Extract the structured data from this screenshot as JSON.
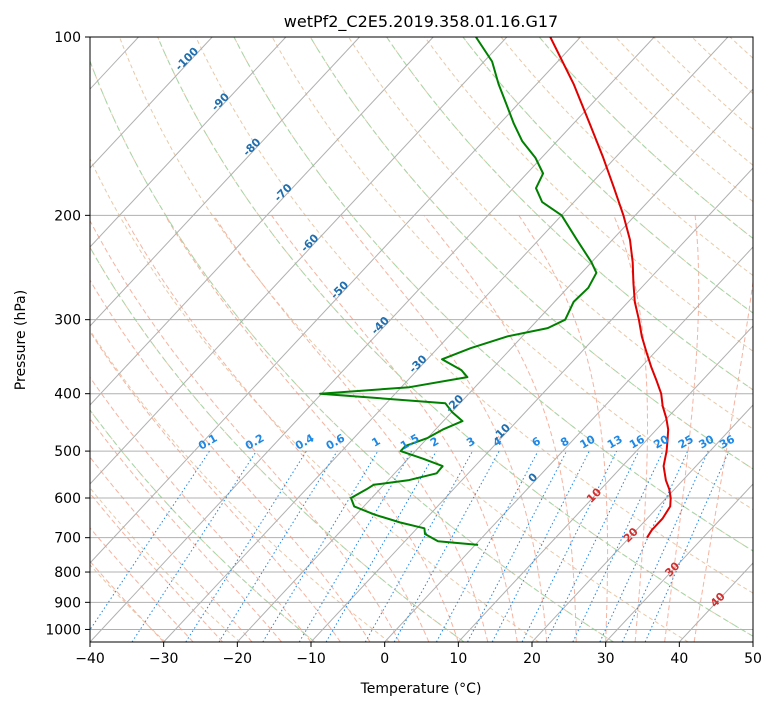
{
  "chart_data": {
    "type": "line",
    "subtype": "skew-T log-P diagram",
    "title": "wetPf2_C2E5.2019.358.01.16.G17",
    "xlabel": "Temperature (°C)",
    "ylabel": "Pressure (hPa)",
    "xlim": [
      -40,
      50
    ],
    "ylim": [
      1050,
      100
    ],
    "y_scale": "log",
    "x_ticks": [
      "−40",
      "−30",
      "−20",
      "−10",
      "0",
      "10",
      "20",
      "30",
      "40",
      "50"
    ],
    "y_ticks": [
      "100",
      "200",
      "300",
      "400",
      "500",
      "600",
      "700",
      "800",
      "900",
      "1000"
    ],
    "grid": true,
    "skew_per_decade": 75,
    "series": [
      {
        "color": "#e00000",
        "points": [
          [
            700,
            22.4
          ],
          [
            680,
            22.1
          ],
          [
            650,
            22.1
          ],
          [
            620,
            21.6
          ],
          [
            600,
            20.6
          ],
          [
            580,
            19.3
          ],
          [
            560,
            17.7
          ],
          [
            530,
            15.6
          ],
          [
            500,
            14.1
          ],
          [
            480,
            12.9
          ],
          [
            460,
            11.6
          ],
          [
            440,
            9.9
          ],
          [
            420,
            7.9
          ],
          [
            400,
            6.1
          ],
          [
            380,
            3.8
          ],
          [
            360,
            1.3
          ],
          [
            340,
            -1.2
          ],
          [
            320,
            -3.8
          ],
          [
            300,
            -6.3
          ],
          [
            280,
            -9.1
          ],
          [
            260,
            -11.7
          ],
          [
            240,
            -14.4
          ],
          [
            220,
            -17.6
          ],
          [
            200,
            -21.6
          ],
          [
            180,
            -26.3
          ],
          [
            160,
            -31.6
          ],
          [
            140,
            -37.8
          ],
          [
            120,
            -45.0
          ],
          [
            100,
            -54.1
          ]
        ]
      },
      {
        "color": "#008000",
        "points": [
          [
            720,
            0.4
          ],
          [
            710,
            -5.5
          ],
          [
            690,
            -8.2
          ],
          [
            675,
            -9.0
          ],
          [
            660,
            -13.0
          ],
          [
            640,
            -17.5
          ],
          [
            620,
            -21.3
          ],
          [
            600,
            -22.8
          ],
          [
            580,
            -21.8
          ],
          [
            570,
            -21.4
          ],
          [
            560,
            -17.3
          ],
          [
            545,
            -14.3
          ],
          [
            530,
            -14.4
          ],
          [
            515,
            -18.0
          ],
          [
            500,
            -22.0
          ],
          [
            490,
            -22.0
          ],
          [
            475,
            -20.0
          ],
          [
            460,
            -19.0
          ],
          [
            445,
            -17.4
          ],
          [
            430,
            -19.9
          ],
          [
            415,
            -22.0
          ],
          [
            400,
            -40.2
          ],
          [
            390,
            -28.9
          ],
          [
            375,
            -22.3
          ],
          [
            365,
            -24.0
          ],
          [
            350,
            -28.0
          ],
          [
            335,
            -25.5
          ],
          [
            320,
            -22.0
          ],
          [
            310,
            -17.6
          ],
          [
            300,
            -16.3
          ],
          [
            280,
            -17.4
          ],
          [
            265,
            -17.2
          ],
          [
            250,
            -18.0
          ],
          [
            240,
            -20.0
          ],
          [
            220,
            -24.8
          ],
          [
            200,
            -30.0
          ],
          [
            190,
            -34.3
          ],
          [
            180,
            -36.9
          ],
          [
            170,
            -37.8
          ],
          [
            160,
            -40.8
          ],
          [
            150,
            -44.7
          ],
          [
            140,
            -48.1
          ],
          [
            130,
            -51.5
          ],
          [
            120,
            -55.2
          ],
          [
            110,
            -58.9
          ],
          [
            100,
            -64.2
          ]
        ]
      }
    ],
    "dry_adiabat_labels": [
      "-100",
      "-90",
      "-80",
      "-70",
      "-60",
      "-50",
      "-40",
      "-30",
      "-20",
      "-10",
      "0"
    ],
    "moist_adiabat_labels": [
      "10",
      "20",
      "30",
      "40"
    ],
    "mixing_ratio_labels": [
      "0.1",
      "0.2",
      "0.4",
      "0.6",
      "1",
      "1.5",
      "2",
      "3",
      "4",
      "6",
      "8",
      "10",
      "13",
      "16",
      "20",
      "25",
      "30",
      "36"
    ]
  }
}
